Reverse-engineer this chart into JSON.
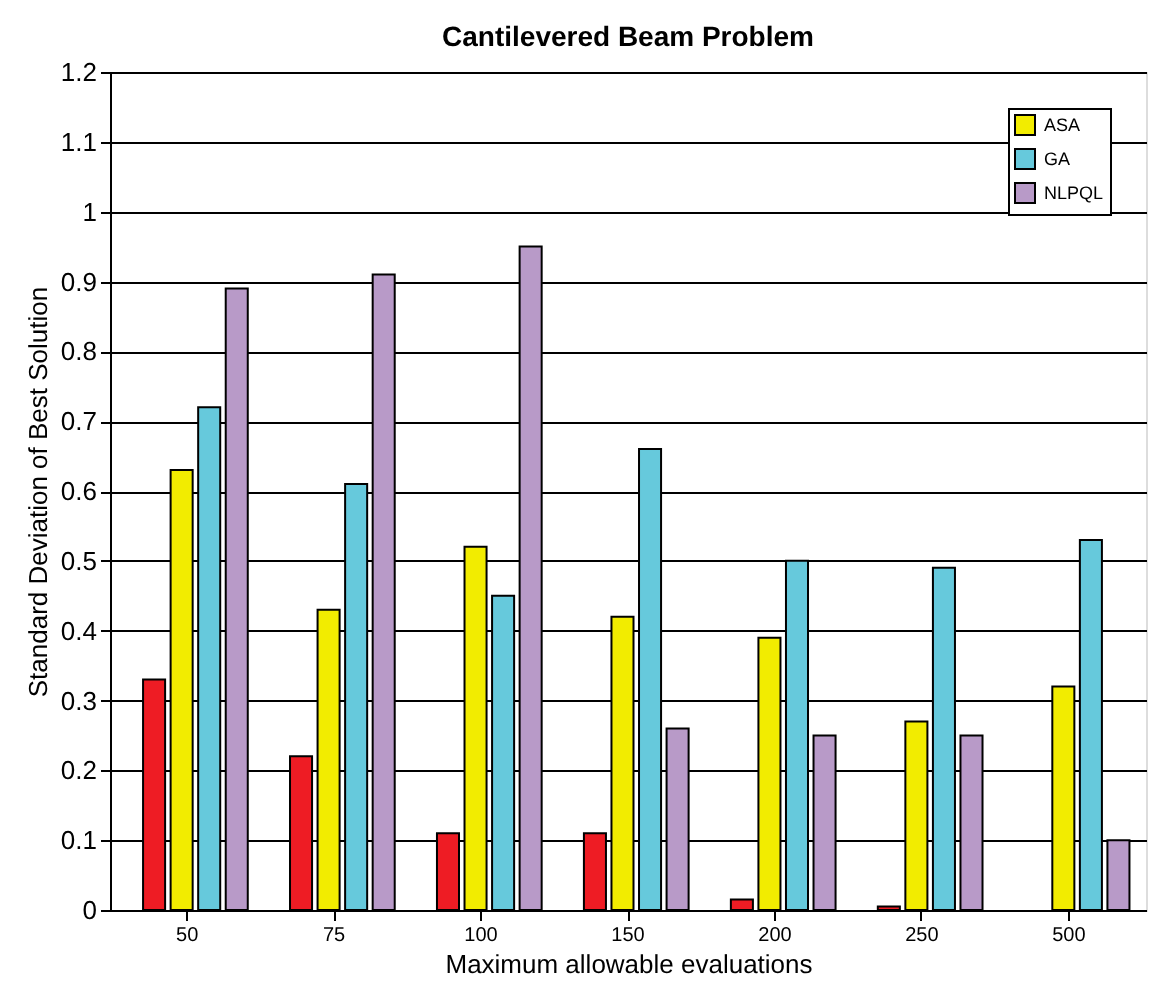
{
  "chart_data": {
    "type": "bar",
    "title": "Cantilevered Beam Problem",
    "xlabel": "Maximum allowable evaluations",
    "ylabel": "Standard Deviation of Best Solution",
    "categories": [
      "50",
      "75",
      "100",
      "150",
      "200",
      "250",
      "500"
    ],
    "series": [
      {
        "color": "#ee1c24",
        "values": [
          0.33,
          0.22,
          0.11,
          0.11,
          0.015,
          0.005,
          null
        ]
      },
      {
        "name": "ASA",
        "color": "#f2ec00",
        "values": [
          0.63,
          0.43,
          0.52,
          0.42,
          0.39,
          0.27,
          0.32
        ]
      },
      {
        "name": "GA",
        "color": "#66c9dc",
        "values": [
          0.72,
          0.61,
          0.45,
          0.66,
          0.5,
          0.49,
          0.53
        ]
      },
      {
        "name": "NLPQL",
        "color": "#b89ac8",
        "values": [
          0.89,
          0.91,
          0.95,
          0.26,
          0.25,
          0.25,
          0.1
        ]
      }
    ],
    "ylim": [
      0,
      1.2
    ],
    "yticks": [
      0,
      0.1,
      0.2,
      0.3,
      0.4,
      0.5,
      0.6,
      0.7,
      0.8,
      0.9,
      1,
      1.1,
      1.2
    ],
    "grid": "y",
    "legend": "top right"
  }
}
